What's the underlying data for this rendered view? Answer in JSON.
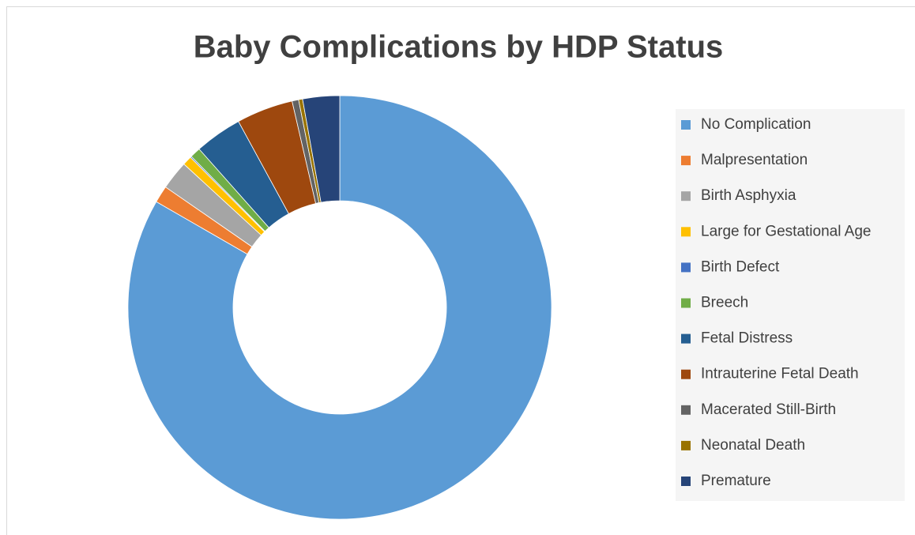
{
  "chart_data": {
    "type": "donut",
    "title": "Baby Complications by HDP Status",
    "categories": [
      "No Complication",
      "Malpresentation",
      "Birth Asphyxia",
      "Large for Gestational Age",
      "Birth Defect",
      "Breech",
      "Fetal Distress",
      "Intrauterine Fetal Death",
      "Macerated Still-Birth",
      "Neonatal Death",
      "Premature"
    ],
    "values": [
      82.9,
      1.3,
      2.2,
      0.7,
      0.1,
      0.8,
      3.6,
      4.3,
      0.5,
      0.3,
      2.8
    ],
    "colors": [
      "#5b9bd5",
      "#ed7d31",
      "#a5a5a5",
      "#ffc000",
      "#4472c4",
      "#70ad47",
      "#255e91",
      "#9e480e",
      "#636363",
      "#997300",
      "#264478"
    ],
    "legend": "right"
  }
}
